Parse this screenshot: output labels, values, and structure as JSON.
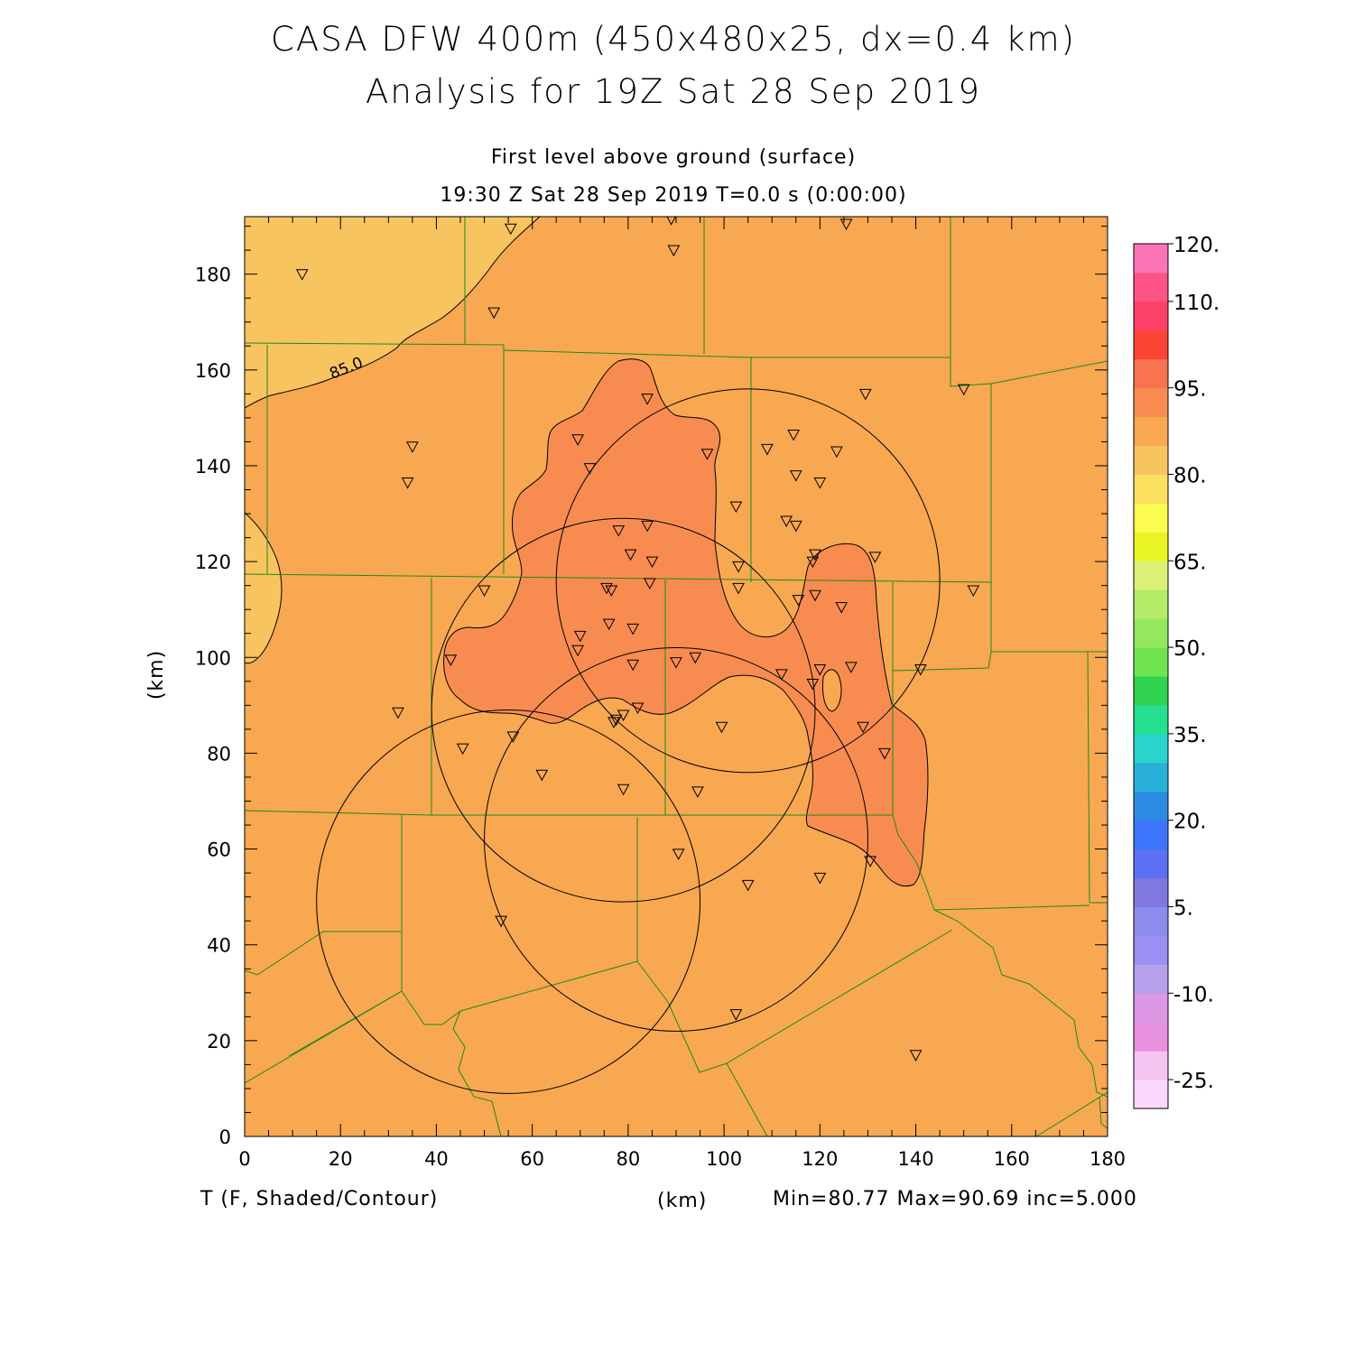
{
  "header": {
    "title_line1": "CASA DFW 400m (450x480x25, dx=0.4 km)",
    "title_line2": "Analysis for 19Z Sat 28 Sep 2019",
    "subtitle_line1": "First level above ground (surface)",
    "subtitle_line2": "19:30 Z Sat 28 Sep 2019    T=0.0 s (0:00:00)"
  },
  "footer": {
    "variable_label": "T (F, Shaded/Contour)",
    "x_unit_label": "(km)",
    "stats_label": "Min=80.77 Max=90.69 inc=5.000"
  },
  "axes": {
    "x": {
      "min": 0,
      "max": 180,
      "ticks": [
        0,
        20,
        40,
        60,
        80,
        100,
        120,
        140,
        160,
        180
      ],
      "labels": [
        "0",
        "20",
        "40",
        "60",
        "80",
        "100",
        "120",
        "140",
        "160",
        "180"
      ]
    },
    "y": {
      "min": 0,
      "max": 192,
      "ticks": [
        0,
        20,
        40,
        60,
        80,
        100,
        120,
        140,
        160,
        180
      ],
      "labels": [
        "0",
        "20",
        "40",
        "60",
        "80",
        "100",
        "120",
        "140",
        "160",
        "180"
      ]
    },
    "y_unit_label": "(km)"
  },
  "contour": {
    "label": "85.0",
    "level": 85.0
  },
  "colorbar": {
    "colors": [
      "#fcd8fc",
      "#f4c4f0",
      "#e890e0",
      "#dc98e4",
      "#b8a0ec",
      "#9c90f4",
      "#8c8cec",
      "#8078e0",
      "#5c70f4",
      "#3c74fc",
      "#2c8ce4",
      "#28b0d8",
      "#28d4cc",
      "#24e090",
      "#30d450",
      "#70e450",
      "#94e860",
      "#b4ec68",
      "#dcf078",
      "#e8f424",
      "#fcfc50",
      "#fce060",
      "#f8c460",
      "#f8a850",
      "#f88c50",
      "#f87450",
      "#fc4434",
      "#fc4068",
      "#fc5484",
      "#fc74b8"
    ],
    "tick_labels": [
      {
        "label": "120.",
        "at_index": 30
      },
      {
        "label": "110.",
        "at_index": 28
      },
      {
        "label": "95.",
        "at_index": 25
      },
      {
        "label": "80.",
        "at_index": 22
      },
      {
        "label": "65.",
        "at_index": 19
      },
      {
        "label": "50.",
        "at_index": 16
      },
      {
        "label": "35.",
        "at_index": 13
      },
      {
        "label": "20.",
        "at_index": 10
      },
      {
        "label": "5.",
        "at_index": 7
      },
      {
        "label": "-10.",
        "at_index": 4
      },
      {
        "label": "-25.",
        "at_index": 1
      }
    ]
  },
  "colors": {
    "field_base": "#f8a850",
    "field_warm": "#f88c50",
    "field_cool": "#f8c460",
    "county_lines": "#1e8a1e",
    "radar_rings": "#000000"
  },
  "radar_rings": [
    {
      "cx": 105,
      "cy": 116,
      "r": 40
    },
    {
      "cx": 79,
      "cy": 89,
      "r": 40
    },
    {
      "cx": 90,
      "cy": 62,
      "r": 40
    },
    {
      "cx": 55,
      "cy": 49,
      "r": 40
    }
  ],
  "stations": [
    [
      12,
      180
    ],
    [
      55.5,
      189.5
    ],
    [
      89,
      191.5
    ],
    [
      125.5,
      190.5
    ],
    [
      89.5,
      185
    ],
    [
      52,
      172
    ],
    [
      35,
      144
    ],
    [
      34,
      136.5
    ],
    [
      84,
      154
    ],
    [
      69.5,
      145.5
    ],
    [
      72,
      139.5
    ],
    [
      96.5,
      142.5
    ],
    [
      109,
      143.5
    ],
    [
      114.5,
      146.5
    ],
    [
      123.5,
      143
    ],
    [
      129.5,
      155
    ],
    [
      150,
      156
    ],
    [
      115,
      138
    ],
    [
      120,
      136.5
    ],
    [
      102.5,
      131.5
    ],
    [
      113,
      128.5
    ],
    [
      115,
      127.5
    ],
    [
      78,
      126.5
    ],
    [
      84,
      127.5
    ],
    [
      80.5,
      121.5
    ],
    [
      85,
      120
    ],
    [
      103,
      119
    ],
    [
      118.5,
      120
    ],
    [
      119,
      121.5
    ],
    [
      131.5,
      121
    ],
    [
      50,
      114
    ],
    [
      75.5,
      114.5
    ],
    [
      76.5,
      114
    ],
    [
      84.5,
      115.5
    ],
    [
      103,
      114.5
    ],
    [
      115.5,
      112
    ],
    [
      119,
      113
    ],
    [
      124.5,
      110.5
    ],
    [
      152,
      114
    ],
    [
      70,
      104.5
    ],
    [
      76,
      107
    ],
    [
      81,
      106
    ],
    [
      69.5,
      101.5
    ],
    [
      43,
      99.5
    ],
    [
      81,
      98.5
    ],
    [
      90,
      99
    ],
    [
      94,
      100
    ],
    [
      112,
      96.5
    ],
    [
      118.5,
      94.5
    ],
    [
      120,
      97.5
    ],
    [
      126.5,
      98
    ],
    [
      141,
      97.5
    ],
    [
      32,
      88.5
    ],
    [
      77,
      86.5
    ],
    [
      79,
      88
    ],
    [
      82,
      89.5
    ],
    [
      77.5,
      87
    ],
    [
      99.5,
      85.5
    ],
    [
      129,
      85.5
    ],
    [
      133.5,
      80
    ],
    [
      45.5,
      81
    ],
    [
      56,
      83.5
    ],
    [
      62,
      75.5
    ],
    [
      79,
      72.5
    ],
    [
      94.5,
      72
    ],
    [
      90.5,
      59
    ],
    [
      105,
      52.5
    ],
    [
      120,
      54
    ],
    [
      130.5,
      57.5
    ],
    [
      53.5,
      45
    ],
    [
      102.5,
      25.5
    ],
    [
      140,
      17
    ]
  ]
}
